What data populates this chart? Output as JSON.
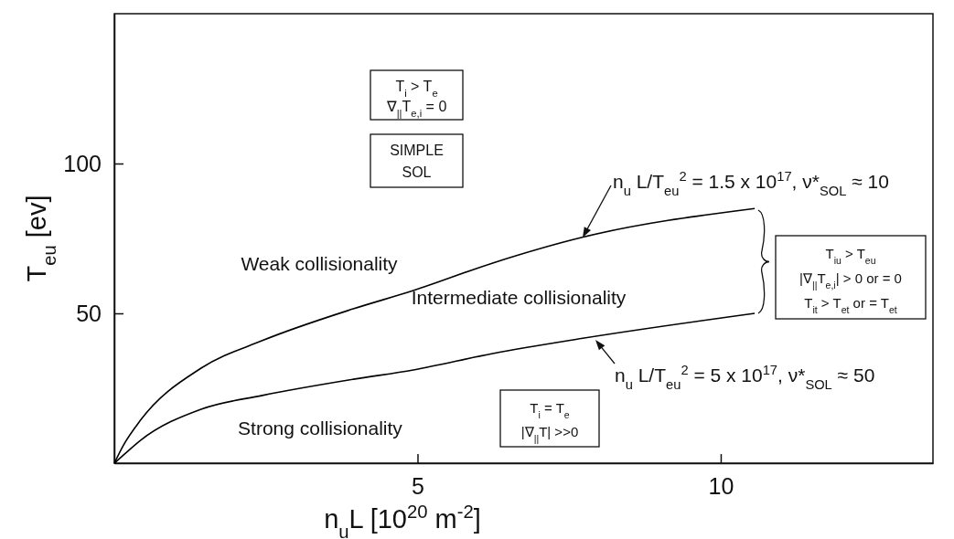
{
  "chart_data": {
    "type": "line",
    "xlabel": "n$_{u}$L [10$^{20}$ m$^{-2}$]",
    "ylabel": "T$_{eu}$ [ev]",
    "x": [
      0,
      0.15,
      0.43,
      1.43,
      2.44,
      3.94,
      4.93,
      6.24,
      7.7,
      10.56
    ],
    "series": [
      {
        "color": "#000000",
        "values": [
          0,
          6,
          14.3,
          31.7,
          40.9,
          51.5,
          57.6,
          66.8,
          75.3,
          85
        ]
      },
      {
        "color": "#000000",
        "values": [
          0,
          2.7,
          7.6,
          18,
          22.6,
          28,
          31.1,
          36.6,
          41.6,
          50
        ]
      }
    ],
    "xlim": [
      0,
      13.5
    ],
    "ylim": [
      0,
      150
    ],
    "xticks": [
      5,
      10
    ],
    "yticks": [
      50,
      100
    ],
    "grid": false,
    "annotations": [
      "Weak collisionality",
      "Intermediate collisionality",
      "Strong collisionality",
      "T$_{i}$ > T$_{e}$\n∇$_{||}$T$_{e,i}$ = 0",
      "SIMPLE\nSOL",
      "T$_{iu}$ > T$_{eu}$\n|∇$_{||}$T$_{e,i}$| > 0 or = 0\nT$_{it}$ > T$_{et}$ or = T$_{et}$",
      "T$_{i}$ = T$_{e}$\n|∇$_{||}$T| >>0",
      "n$_{u}$ L/T$_{eu}$$^{2}$ = 1.5 x 10$^{17}$, ν*$_{SOL}$ ≈ 10",
      "n$_{u}$ L/T$_{eu}$$^{2}$ = 5 x 10$^{17}$, ν*$_{SOL}$ ≈ 50"
    ]
  }
}
